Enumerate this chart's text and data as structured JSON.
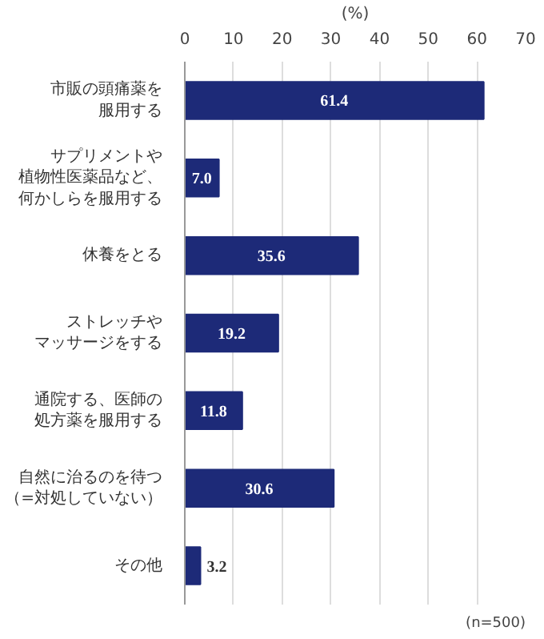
{
  "chart_data": {
    "type": "bar",
    "orientation": "horizontal",
    "xlabel": "(%)",
    "categories": [
      "市販の頭痛薬を服用する",
      "サプリメントや植物性医薬品など、何かしらを服用する",
      "休養をとる",
      "ストレッチやマッサージをする",
      "通院する、医師の処方薬を服用する",
      "自然に治るのを待つ（=対処していない）",
      "その他"
    ],
    "values": [
      61.4,
      7.0,
      35.6,
      19.2,
      11.8,
      30.6,
      3.2
    ],
    "value_labels": [
      "61.4",
      "7.0",
      "35.6",
      "19.2",
      "11.8",
      "30.6",
      "3.2"
    ],
    "color": "#1d2a78",
    "xlim": [
      0,
      70
    ],
    "xticks": [
      0,
      10,
      20,
      30,
      40,
      50,
      60,
      70
    ],
    "grid": "x",
    "annotations": [
      "(n=500)"
    ]
  }
}
